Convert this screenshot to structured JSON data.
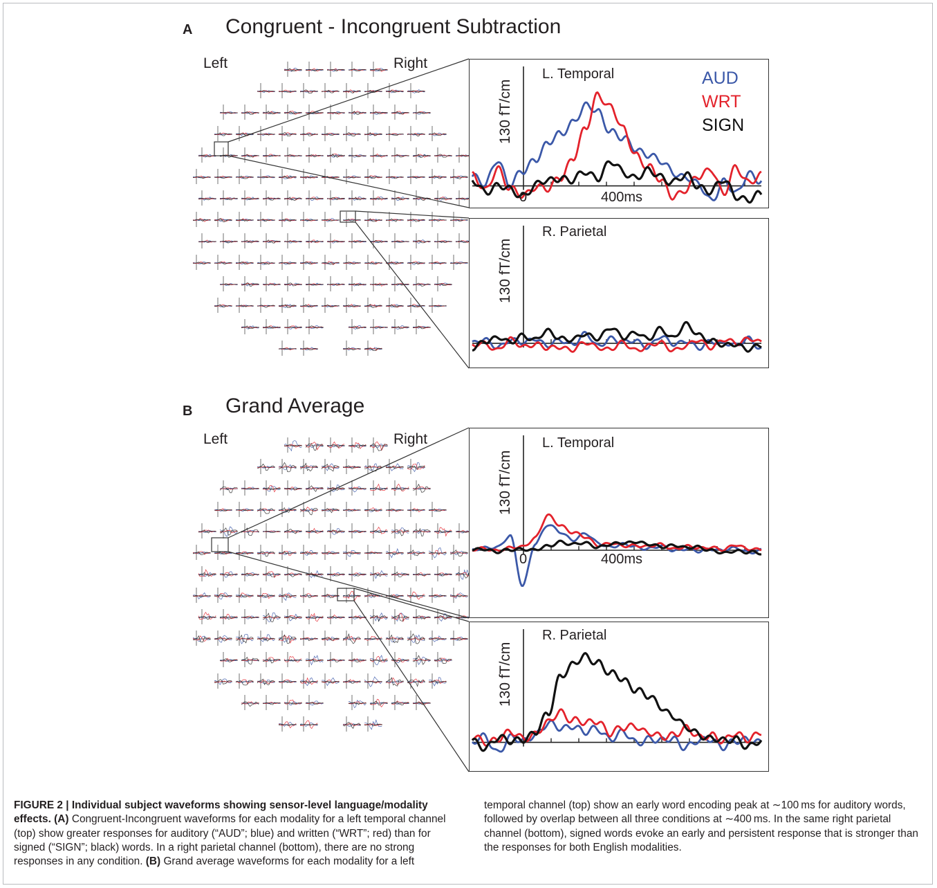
{
  "figure": {
    "panel_a": {
      "letter": "A",
      "title": "Congruent - Incongruent Subtraction"
    },
    "panel_b": {
      "letter": "B",
      "title": "Grand Average"
    },
    "head_left_label": "Left",
    "head_right_label": "Right",
    "scale_label": "130 fT/cm",
    "channel_top": "L. Temporal",
    "channel_bottom": "R. Parietal",
    "time_zero": "0",
    "time_400": "400ms",
    "legend": [
      {
        "label": "AUD",
        "color": "#3b58a8"
      },
      {
        "label": "WRT",
        "color": "#e3222b"
      },
      {
        "label": "SIGN",
        "color": "#111111"
      }
    ]
  },
  "caption": {
    "label": "FIGURE 2 | Individual subject waveforms showing sensor-level language/modality effects.",
    "a_tag": "(A)",
    "a_text": " Congruent-Incongruent waveforms for each modality for a left temporal channel (top) show greater responses for auditory (“AUD”; blue) and written (“WRT”; red) than for signed (“SIGN”; black) words. In a right parietal channel (bottom), there are no strong responses in any condition.",
    "b_tag": "(B)",
    "b_text": " Grand average waveforms for each modality for a left temporal channel (top) show an early word encoding peak at ∼100 ms for auditory words, followed by overlap between all three conditions at ∼400 ms. In the same right parietal channel (bottom), signed words evoke an early and persistent response that is stronger than the responses for both English modalities."
  },
  "chart_data": [
    {
      "type": "line",
      "title": "L. Temporal",
      "ylabel": "130 fT/cm",
      "x": [
        -100,
        -50,
        0,
        50,
        100,
        150,
        200,
        250,
        300,
        350,
        400,
        450,
        500,
        550,
        600,
        650,
        700,
        750,
        800,
        850,
        900,
        950,
        1000,
        1050
      ],
      "series": [
        {
          "name": "AUD",
          "color": "#3b58a8",
          "values": [
            0.1,
            0.0,
            0.3,
            0.0,
            0.15,
            0.3,
            0.45,
            0.55,
            0.7,
            0.85,
            0.8,
            0.6,
            0.5,
            0.4,
            0.35,
            0.25,
            0.15,
            0.1,
            0.0,
            -0.15,
            0.05,
            -0.1,
            0.15,
            0.05
          ]
        },
        {
          "name": "WRT",
          "color": "#e3222b",
          "values": [
            0.1,
            -0.05,
            0.2,
            -0.05,
            -0.1,
            0.0,
            -0.05,
            0.1,
            0.3,
            0.6,
            1.0,
            0.85,
            0.6,
            0.35,
            0.2,
            0.05,
            -0.1,
            -0.05,
            0.1,
            0.2,
            -0.1,
            0.2,
            0.05,
            0.1
          ]
        },
        {
          "name": "SIGN",
          "color": "#111111",
          "values": [
            0.05,
            -0.05,
            0.0,
            -0.05,
            -0.1,
            0.0,
            0.05,
            0.1,
            0.05,
            0.15,
            0.1,
            0.25,
            0.15,
            0.1,
            0.15,
            0.1,
            0.05,
            0.1,
            0.0,
            -0.05,
            0.05,
            -0.1,
            -0.15,
            -0.1
          ]
        }
      ]
    },
    {
      "type": "line",
      "title": "R. Parietal",
      "ylabel": "130 fT/cm",
      "x": [
        -100,
        -50,
        0,
        50,
        100,
        150,
        200,
        250,
        300,
        350,
        400,
        450,
        500,
        550,
        600,
        650,
        700,
        750,
        800,
        850,
        900,
        950,
        1000,
        1050
      ],
      "series": [
        {
          "name": "AUD",
          "color": "#3b58a8",
          "values": [
            0.0,
            0.05,
            -0.05,
            0.05,
            0.0,
            0.1,
            -0.05,
            0.05,
            0.0,
            0.15,
            -0.05,
            0.1,
            0.0,
            0.05,
            -0.05,
            0.1,
            0.0,
            0.05,
            -0.1,
            0.05,
            0.0,
            -0.05,
            0.1,
            -0.1
          ]
        },
        {
          "name": "WRT",
          "color": "#e3222b",
          "values": [
            -0.05,
            0.0,
            -0.1,
            0.05,
            -0.05,
            0.0,
            -0.1,
            -0.05,
            -0.1,
            0.0,
            -0.05,
            -0.1,
            0.0,
            -0.1,
            -0.05,
            0.0,
            -0.1,
            -0.05,
            0.05,
            -0.05,
            0.05,
            0.0,
            0.1,
            0.0
          ]
        },
        {
          "name": "SIGN",
          "color": "#111111",
          "values": [
            -0.1,
            0.05,
            0.1,
            0.0,
            0.15,
            0.05,
            0.2,
            0.1,
            0.05,
            0.15,
            0.1,
            0.25,
            0.1,
            0.2,
            0.05,
            0.25,
            0.1,
            0.3,
            0.15,
            0.05,
            -0.05,
            0.0,
            -0.1,
            -0.05
          ]
        }
      ]
    },
    {
      "type": "line",
      "title": "L. Temporal",
      "ylabel": "130 fT/cm",
      "x": [
        -100,
        -50,
        0,
        50,
        100,
        150,
        200,
        250,
        300,
        350,
        400,
        450,
        500,
        550,
        600,
        650,
        700,
        750,
        800,
        850,
        900,
        950,
        1000,
        1050
      ],
      "series": [
        {
          "name": "AUD",
          "color": "#3b58a8",
          "values": [
            0.0,
            0.05,
            0.1,
            0.4,
            -1.0,
            0.2,
            0.7,
            0.5,
            0.3,
            0.45,
            0.2,
            0.1,
            0.15,
            0.1,
            0.05,
            0.1,
            0.0,
            0.05,
            -0.05,
            0.05,
            0.0,
            0.05,
            -0.05,
            0.0
          ]
        },
        {
          "name": "WRT",
          "color": "#e3222b",
          "values": [
            0.0,
            0.05,
            0.0,
            0.05,
            0.1,
            0.35,
            0.95,
            0.7,
            0.5,
            0.35,
            0.15,
            0.2,
            0.1,
            0.15,
            0.1,
            0.15,
            0.05,
            0.1,
            0.05,
            0.1,
            0.0,
            0.15,
            0.05,
            0.0
          ]
        },
        {
          "name": "SIGN",
          "color": "#111111",
          "values": [
            0.0,
            0.05,
            -0.05,
            0.0,
            0.05,
            0.0,
            0.1,
            0.25,
            0.15,
            0.2,
            0.1,
            0.15,
            0.2,
            0.25,
            0.15,
            0.1,
            0.15,
            0.05,
            0.1,
            0.0,
            -0.1,
            0.0,
            -0.05,
            -0.1
          ]
        }
      ]
    },
    {
      "type": "line",
      "title": "R. Parietal",
      "ylabel": "130 fT/cm",
      "x": [
        -100,
        -50,
        0,
        50,
        100,
        150,
        200,
        250,
        300,
        350,
        400,
        450,
        500,
        550,
        600,
        650,
        700,
        750,
        800,
        850,
        900,
        950,
        1000,
        1050
      ],
      "series": [
        {
          "name": "AUD",
          "color": "#3b58a8",
          "values": [
            0.0,
            0.05,
            -0.1,
            0.05,
            0.0,
            0.1,
            0.2,
            0.15,
            0.2,
            0.1,
            0.15,
            0.05,
            0.1,
            0.0,
            0.05,
            0.0,
            0.05,
            -0.05,
            0.0,
            0.05,
            -0.05,
            0.0,
            0.05,
            0.0
          ]
        },
        {
          "name": "WRT",
          "color": "#e3222b",
          "values": [
            0.05,
            0.0,
            0.05,
            0.1,
            0.05,
            0.1,
            0.2,
            0.35,
            0.25,
            0.2,
            0.25,
            0.1,
            0.15,
            0.2,
            0.1,
            0.05,
            0.1,
            0.15,
            0.05,
            0.1,
            0.0,
            0.1,
            0.05,
            0.1
          ]
        },
        {
          "name": "SIGN",
          "color": "#111111",
          "values": [
            0.0,
            -0.05,
            0.05,
            0.0,
            0.05,
            0.1,
            0.3,
            0.75,
            0.85,
            0.95,
            0.9,
            0.75,
            0.7,
            0.6,
            0.5,
            0.4,
            0.3,
            0.15,
            0.1,
            0.05,
            0.0,
            0.05,
            -0.05,
            0.0
          ]
        }
      ]
    }
  ]
}
